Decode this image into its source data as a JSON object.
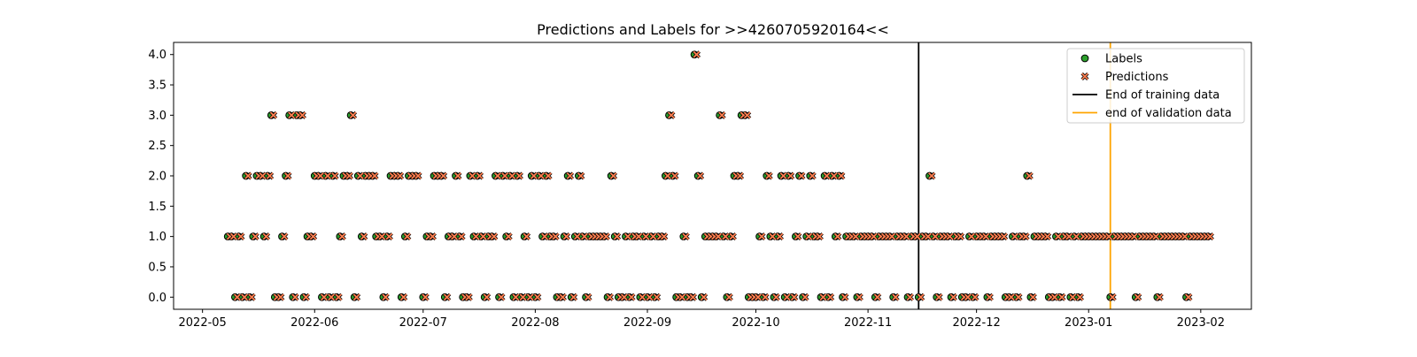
{
  "chart_data": {
    "type": "scatter",
    "title": "Predictions and Labels for >>4260705920164<<",
    "xlabel": "",
    "ylabel": "",
    "x_type": "date",
    "xlim": [
      "2022-04-23",
      "2023-02-15"
    ],
    "ylim": [
      -0.2,
      4.2
    ],
    "x_ticks": [
      "2022-05-01",
      "2022-06-01",
      "2022-07-01",
      "2022-08-01",
      "2022-09-01",
      "2022-10-01",
      "2022-11-01",
      "2022-12-01",
      "2023-01-01",
      "2023-02-01"
    ],
    "x_tick_labels": [
      "2022-05",
      "2022-06",
      "2022-07",
      "2022-08",
      "2022-09",
      "2022-10",
      "2022-11",
      "2022-12",
      "2023-01",
      "2023-02"
    ],
    "y_ticks": [
      0.0,
      0.5,
      1.0,
      1.5,
      2.0,
      2.5,
      3.0,
      3.5,
      4.0
    ],
    "y_tick_labels": [
      "0.0",
      "0.5",
      "1.0",
      "1.5",
      "2.0",
      "2.5",
      "3.0",
      "3.5",
      "4.0"
    ],
    "grid": false,
    "legend_position": "top-right",
    "series": [
      {
        "name": "Labels",
        "marker": "circle",
        "color": "#2ca02c",
        "edge_color": "#000000",
        "points": [
          [
            "2022-05-08",
            1
          ],
          [
            "2022-05-09",
            1
          ],
          [
            "2022-05-10",
            0
          ],
          [
            "2022-05-11",
            1
          ],
          [
            "2022-05-12",
            0
          ],
          [
            "2022-05-13",
            2
          ],
          [
            "2022-05-14",
            0
          ],
          [
            "2022-05-15",
            1
          ],
          [
            "2022-05-16",
            2
          ],
          [
            "2022-05-17",
            2
          ],
          [
            "2022-05-18",
            1
          ],
          [
            "2022-05-19",
            2
          ],
          [
            "2022-05-20",
            3
          ],
          [
            "2022-05-21",
            0
          ],
          [
            "2022-05-22",
            0
          ],
          [
            "2022-05-23",
            1
          ],
          [
            "2022-05-24",
            2
          ],
          [
            "2022-05-25",
            3
          ],
          [
            "2022-05-26",
            0
          ],
          [
            "2022-05-27",
            3
          ],
          [
            "2022-05-28",
            3
          ],
          [
            "2022-05-29",
            0
          ],
          [
            "2022-05-30",
            1
          ],
          [
            "2022-05-31",
            1
          ],
          [
            "2022-06-01",
            2
          ],
          [
            "2022-06-02",
            2
          ],
          [
            "2022-06-03",
            0
          ],
          [
            "2022-06-04",
            2
          ],
          [
            "2022-06-05",
            0
          ],
          [
            "2022-06-06",
            2
          ],
          [
            "2022-06-07",
            0
          ],
          [
            "2022-06-08",
            1
          ],
          [
            "2022-06-09",
            2
          ],
          [
            "2022-06-10",
            2
          ],
          [
            "2022-06-11",
            3
          ],
          [
            "2022-06-12",
            0
          ],
          [
            "2022-06-13",
            2
          ],
          [
            "2022-06-14",
            1
          ],
          [
            "2022-06-15",
            2
          ],
          [
            "2022-06-16",
            2
          ],
          [
            "2022-06-17",
            2
          ],
          [
            "2022-06-18",
            1
          ],
          [
            "2022-06-19",
            1
          ],
          [
            "2022-06-20",
            0
          ],
          [
            "2022-06-21",
            1
          ],
          [
            "2022-06-22",
            2
          ],
          [
            "2022-06-23",
            2
          ],
          [
            "2022-06-24",
            2
          ],
          [
            "2022-06-25",
            0
          ],
          [
            "2022-06-26",
            1
          ],
          [
            "2022-06-27",
            2
          ],
          [
            "2022-06-28",
            2
          ],
          [
            "2022-06-29",
            2
          ],
          [
            "2022-07-01",
            0
          ],
          [
            "2022-07-02",
            1
          ],
          [
            "2022-07-03",
            1
          ],
          [
            "2022-07-04",
            2
          ],
          [
            "2022-07-05",
            2
          ],
          [
            "2022-07-06",
            2
          ],
          [
            "2022-07-07",
            0
          ],
          [
            "2022-07-08",
            1
          ],
          [
            "2022-07-09",
            1
          ],
          [
            "2022-07-10",
            2
          ],
          [
            "2022-07-11",
            1
          ],
          [
            "2022-07-12",
            0
          ],
          [
            "2022-07-13",
            0
          ],
          [
            "2022-07-14",
            2
          ],
          [
            "2022-07-15",
            1
          ],
          [
            "2022-07-16",
            2
          ],
          [
            "2022-07-17",
            1
          ],
          [
            "2022-07-18",
            0
          ],
          [
            "2022-07-19",
            1
          ],
          [
            "2022-07-20",
            1
          ],
          [
            "2022-07-21",
            2
          ],
          [
            "2022-07-22",
            0
          ],
          [
            "2022-07-23",
            2
          ],
          [
            "2022-07-24",
            1
          ],
          [
            "2022-07-25",
            2
          ],
          [
            "2022-07-26",
            0
          ],
          [
            "2022-07-27",
            2
          ],
          [
            "2022-07-28",
            0
          ],
          [
            "2022-07-29",
            1
          ],
          [
            "2022-07-30",
            0
          ],
          [
            "2022-07-31",
            2
          ],
          [
            "2022-08-01",
            0
          ],
          [
            "2022-08-02",
            2
          ],
          [
            "2022-08-03",
            1
          ],
          [
            "2022-08-04",
            2
          ],
          [
            "2022-08-05",
            1
          ],
          [
            "2022-08-06",
            1
          ],
          [
            "2022-08-07",
            0
          ],
          [
            "2022-08-08",
            0
          ],
          [
            "2022-08-09",
            1
          ],
          [
            "2022-08-10",
            2
          ],
          [
            "2022-08-11",
            0
          ],
          [
            "2022-08-12",
            1
          ],
          [
            "2022-08-13",
            2
          ],
          [
            "2022-08-14",
            1
          ],
          [
            "2022-08-15",
            0
          ],
          [
            "2022-08-16",
            1
          ],
          [
            "2022-08-17",
            1
          ],
          [
            "2022-08-18",
            1
          ],
          [
            "2022-08-19",
            1
          ],
          [
            "2022-08-20",
            1
          ],
          [
            "2022-08-21",
            0
          ],
          [
            "2022-08-22",
            2
          ],
          [
            "2022-08-23",
            1
          ],
          [
            "2022-08-24",
            0
          ],
          [
            "2022-08-25",
            0
          ],
          [
            "2022-08-26",
            1
          ],
          [
            "2022-08-27",
            0
          ],
          [
            "2022-08-28",
            1
          ],
          [
            "2022-08-29",
            1
          ],
          [
            "2022-08-30",
            0
          ],
          [
            "2022-08-31",
            1
          ],
          [
            "2022-09-01",
            0
          ],
          [
            "2022-09-02",
            1
          ],
          [
            "2022-09-03",
            0
          ],
          [
            "2022-09-04",
            1
          ],
          [
            "2022-09-05",
            1
          ],
          [
            "2022-09-06",
            2
          ],
          [
            "2022-09-07",
            3
          ],
          [
            "2022-09-08",
            2
          ],
          [
            "2022-09-09",
            0
          ],
          [
            "2022-09-10",
            0
          ],
          [
            "2022-09-11",
            1
          ],
          [
            "2022-09-12",
            0
          ],
          [
            "2022-09-13",
            0
          ],
          [
            "2022-09-14",
            4
          ],
          [
            "2022-09-15",
            2
          ],
          [
            "2022-09-16",
            0
          ],
          [
            "2022-09-17",
            1
          ],
          [
            "2022-09-18",
            1
          ],
          [
            "2022-09-19",
            1
          ],
          [
            "2022-09-20",
            1
          ],
          [
            "2022-09-21",
            3
          ],
          [
            "2022-09-22",
            1
          ],
          [
            "2022-09-23",
            0
          ],
          [
            "2022-09-24",
            1
          ],
          [
            "2022-09-25",
            2
          ],
          [
            "2022-09-26",
            2
          ],
          [
            "2022-09-27",
            3
          ],
          [
            "2022-09-28",
            3
          ],
          [
            "2022-09-29",
            0
          ],
          [
            "2022-09-30",
            0
          ],
          [
            "2022-10-01",
            0
          ],
          [
            "2022-10-02",
            1
          ],
          [
            "2022-10-03",
            0
          ],
          [
            "2022-10-04",
            2
          ],
          [
            "2022-10-05",
            1
          ],
          [
            "2022-10-06",
            0
          ],
          [
            "2022-10-07",
            1
          ],
          [
            "2022-10-08",
            2
          ],
          [
            "2022-10-09",
            0
          ],
          [
            "2022-10-10",
            2
          ],
          [
            "2022-10-11",
            0
          ],
          [
            "2022-10-12",
            1
          ],
          [
            "2022-10-13",
            2
          ],
          [
            "2022-10-14",
            0
          ],
          [
            "2022-10-15",
            1
          ],
          [
            "2022-10-16",
            2
          ],
          [
            "2022-10-17",
            1
          ],
          [
            "2022-10-18",
            1
          ],
          [
            "2022-10-19",
            0
          ],
          [
            "2022-10-20",
            2
          ],
          [
            "2022-10-21",
            0
          ],
          [
            "2022-10-22",
            2
          ],
          [
            "2022-10-23",
            1
          ],
          [
            "2022-10-24",
            2
          ],
          [
            "2022-10-25",
            0
          ],
          [
            "2022-10-26",
            1
          ],
          [
            "2022-10-27",
            1
          ],
          [
            "2022-10-28",
            1
          ],
          [
            "2022-10-29",
            0
          ],
          [
            "2022-10-30",
            1
          ],
          [
            "2022-10-31",
            1
          ],
          [
            "2022-11-01",
            1
          ],
          [
            "2022-11-02",
            1
          ],
          [
            "2022-11-03",
            0
          ],
          [
            "2022-11-04",
            1
          ],
          [
            "2022-11-05",
            1
          ],
          [
            "2022-11-06",
            1
          ],
          [
            "2022-11-07",
            1
          ],
          [
            "2022-11-08",
            0
          ],
          [
            "2022-11-09",
            1
          ],
          [
            "2022-11-10",
            1
          ],
          [
            "2022-11-11",
            1
          ],
          [
            "2022-11-12",
            0
          ],
          [
            "2022-11-13",
            1
          ],
          [
            "2022-11-14",
            1
          ],
          [
            "2022-11-15",
            0
          ],
          [
            "2022-11-16",
            1
          ],
          [
            "2022-11-17",
            1
          ],
          [
            "2022-11-18",
            2
          ],
          [
            "2022-11-19",
            1
          ],
          [
            "2022-11-20",
            0
          ],
          [
            "2022-11-21",
            1
          ],
          [
            "2022-11-22",
            1
          ],
          [
            "2022-11-23",
            1
          ],
          [
            "2022-11-24",
            0
          ],
          [
            "2022-11-25",
            1
          ],
          [
            "2022-11-26",
            1
          ],
          [
            "2022-11-27",
            0
          ],
          [
            "2022-11-28",
            0
          ],
          [
            "2022-11-29",
            1
          ],
          [
            "2022-11-30",
            0
          ],
          [
            "2022-12-01",
            1
          ],
          [
            "2022-12-02",
            1
          ],
          [
            "2022-12-03",
            1
          ],
          [
            "2022-12-04",
            0
          ],
          [
            "2022-12-05",
            1
          ],
          [
            "2022-12-06",
            1
          ],
          [
            "2022-12-07",
            1
          ],
          [
            "2022-12-08",
            1
          ],
          [
            "2022-12-09",
            0
          ],
          [
            "2022-12-10",
            0
          ],
          [
            "2022-12-11",
            1
          ],
          [
            "2022-12-12",
            0
          ],
          [
            "2022-12-13",
            1
          ],
          [
            "2022-12-14",
            1
          ],
          [
            "2022-12-15",
            2
          ],
          [
            "2022-12-16",
            0
          ],
          [
            "2022-12-17",
            1
          ],
          [
            "2022-12-18",
            1
          ],
          [
            "2022-12-19",
            1
          ],
          [
            "2022-12-20",
            1
          ],
          [
            "2022-12-21",
            0
          ],
          [
            "2022-12-22",
            0
          ],
          [
            "2022-12-23",
            1
          ],
          [
            "2022-12-24",
            0
          ],
          [
            "2022-12-25",
            1
          ],
          [
            "2022-12-26",
            1
          ],
          [
            "2022-12-27",
            0
          ],
          [
            "2022-12-28",
            1
          ],
          [
            "2022-12-29",
            0
          ],
          [
            "2022-12-30",
            1
          ],
          [
            "2022-12-31",
            1
          ],
          [
            "2023-01-01",
            1
          ],
          [
            "2023-01-02",
            1
          ],
          [
            "2023-01-03",
            1
          ],
          [
            "2023-01-04",
            1
          ],
          [
            "2023-01-05",
            1
          ],
          [
            "2023-01-06",
            1
          ],
          [
            "2023-01-07",
            0
          ],
          [
            "2023-01-08",
            1
          ],
          [
            "2023-01-09",
            1
          ],
          [
            "2023-01-10",
            1
          ],
          [
            "2023-01-11",
            1
          ],
          [
            "2023-01-12",
            1
          ],
          [
            "2023-01-13",
            1
          ],
          [
            "2023-01-14",
            0
          ],
          [
            "2023-01-15",
            1
          ],
          [
            "2023-01-16",
            1
          ],
          [
            "2023-01-17",
            1
          ],
          [
            "2023-01-18",
            1
          ],
          [
            "2023-01-19",
            1
          ],
          [
            "2023-01-20",
            0
          ],
          [
            "2023-01-21",
            1
          ],
          [
            "2023-01-22",
            1
          ],
          [
            "2023-01-23",
            1
          ],
          [
            "2023-01-24",
            1
          ],
          [
            "2023-01-25",
            1
          ],
          [
            "2023-01-26",
            1
          ],
          [
            "2023-01-27",
            1
          ],
          [
            "2023-01-28",
            0
          ],
          [
            "2023-01-29",
            1
          ],
          [
            "2023-01-30",
            1
          ],
          [
            "2023-01-31",
            1
          ],
          [
            "2023-02-01",
            1
          ],
          [
            "2023-02-02",
            1
          ],
          [
            "2023-02-03",
            1
          ]
        ]
      },
      {
        "name": "Predictions",
        "marker": "x",
        "color": "#ff7f50",
        "edge_color": "#000000",
        "same_values_as": "Labels",
        "offset_days": 0.6
      }
    ],
    "vlines": [
      {
        "name": "End of training data",
        "x": "2022-11-15",
        "color": "#000000"
      },
      {
        "name": "end of validation data",
        "x": "2023-01-07",
        "color": "#ffa500"
      }
    ]
  }
}
